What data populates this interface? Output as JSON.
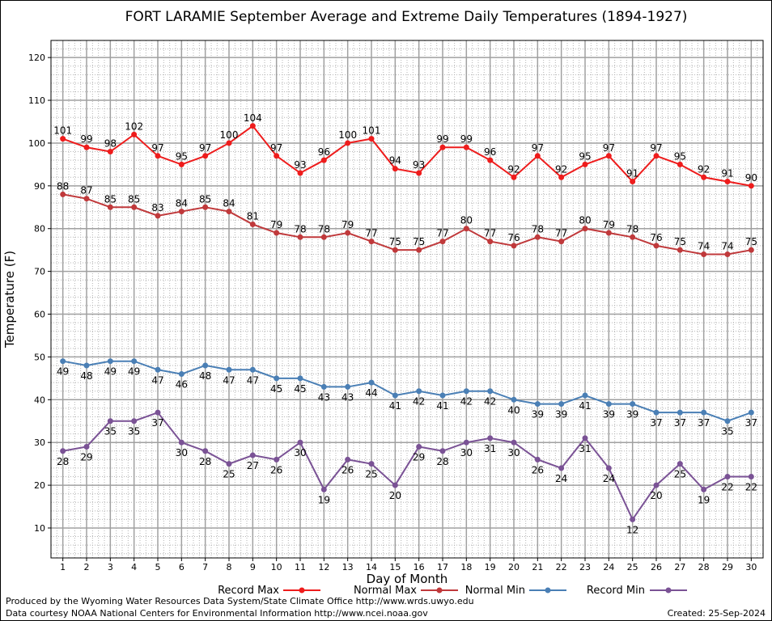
{
  "chart_data": {
    "type": "line",
    "title": "FORT LARAMIE September Average and Extreme Daily Temperatures (1894-1927)",
    "xlabel": "Day of Month",
    "ylabel": "Temperature (F)",
    "x": [
      1,
      2,
      3,
      4,
      5,
      6,
      7,
      8,
      9,
      10,
      11,
      12,
      13,
      14,
      15,
      16,
      17,
      18,
      19,
      20,
      21,
      22,
      23,
      24,
      25,
      26,
      27,
      28,
      29,
      30
    ],
    "xlim": [
      0.5,
      30.5
    ],
    "ylim": [
      3,
      124
    ],
    "yticks": [
      10,
      20,
      30,
      40,
      50,
      60,
      70,
      80,
      90,
      100,
      110,
      120
    ],
    "grid": true,
    "legend_position": "bottom",
    "series": [
      {
        "name": "Record Max",
        "color": "#ee1c1c",
        "label_pos": "above",
        "values": [
          101,
          99,
          98,
          102,
          97,
          95,
          97,
          100,
          104,
          97,
          93,
          96,
          100,
          101,
          94,
          93,
          99,
          99,
          96,
          92,
          97,
          92,
          95,
          97,
          91,
          97,
          95,
          92,
          91,
          90
        ]
      },
      {
        "name": "Normal Max",
        "color": "#c0393b",
        "label_pos": "above",
        "values": [
          88,
          87,
          85,
          85,
          83,
          84,
          85,
          84,
          81,
          79,
          78,
          78,
          79,
          77,
          75,
          75,
          77,
          80,
          77,
          76,
          78,
          77,
          80,
          79,
          78,
          76,
          75,
          74,
          74,
          75
        ]
      },
      {
        "name": "Normal Min",
        "color": "#4a7fb5",
        "label_pos": "below",
        "values": [
          49,
          48,
          49,
          49,
          47,
          46,
          48,
          47,
          47,
          45,
          45,
          43,
          43,
          44,
          41,
          42,
          41,
          42,
          42,
          40,
          39,
          39,
          41,
          39,
          39,
          37,
          37,
          37,
          35,
          37
        ]
      },
      {
        "name": "Record Min",
        "color": "#7a5295",
        "label_pos": "below",
        "values": [
          28,
          29,
          35,
          35,
          37,
          30,
          28,
          25,
          27,
          26,
          30,
          19,
          26,
          25,
          20,
          29,
          28,
          30,
          31,
          30,
          26,
          24,
          31,
          24,
          12,
          20,
          25,
          19,
          22,
          22
        ]
      }
    ]
  },
  "footer": {
    "credit_line1": "Produced by the Wyoming Water Resources Data System/State Climate Office http://www.wrds.uwyo.edu",
    "credit_line2": "Data courtesy NOAA National Centers for Environmental Information http://www.ncei.noaa.gov",
    "created": "Created: 25-Sep-2024"
  }
}
